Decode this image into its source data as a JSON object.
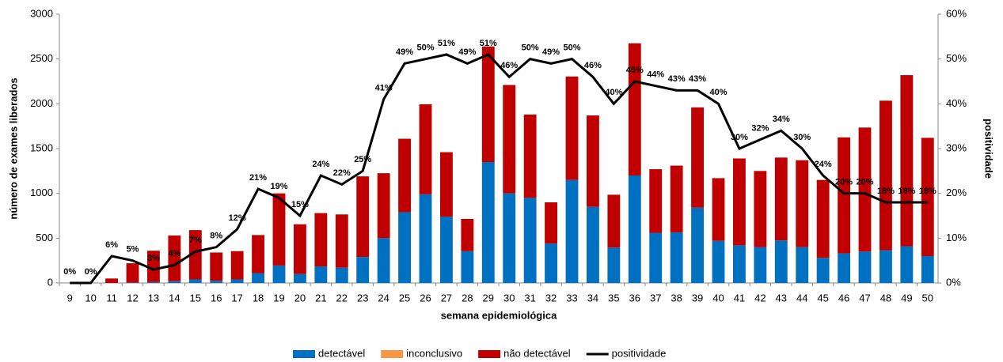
{
  "chart_data": {
    "type": "bar",
    "stacked": true,
    "x_label": "semana epidemiológica",
    "y_label": "número de exames liberados",
    "y2_label": "positividade",
    "categories": [
      "9",
      "10",
      "11",
      "12",
      "13",
      "14",
      "15",
      "16",
      "17",
      "18",
      "19",
      "20",
      "21",
      "22",
      "23",
      "24",
      "25",
      "26",
      "27",
      "28",
      "29",
      "30",
      "31",
      "32",
      "33",
      "34",
      "35",
      "36",
      "37",
      "38",
      "39",
      "40",
      "41",
      "42",
      "43",
      "44",
      "45",
      "46",
      "47",
      "48",
      "49",
      "50"
    ],
    "ylim": [
      0,
      3000
    ],
    "yticks": [
      0,
      500,
      1000,
      1500,
      2000,
      2500,
      3000
    ],
    "y2lim": [
      0,
      60
    ],
    "y2ticks": [
      {
        "value": 0,
        "label": "0%"
      },
      {
        "value": 10,
        "label": "10%"
      },
      {
        "value": 20,
        "label": "20%"
      },
      {
        "value": 30,
        "label": "30%"
      },
      {
        "value": 40,
        "label": "40%"
      },
      {
        "value": 50,
        "label": "50%"
      },
      {
        "value": 60,
        "label": "60%"
      }
    ],
    "series": [
      {
        "name": "detectável",
        "color": "#0070c0",
        "values": [
          0,
          0,
          0,
          5,
          10,
          20,
          40,
          25,
          40,
          110,
          195,
          100,
          185,
          170,
          290,
          500,
          790,
          990,
          740,
          355,
          1350,
          1000,
          950,
          440,
          1150,
          850,
          395,
          1200,
          560,
          565,
          840,
          470,
          420,
          400,
          475,
          400,
          280,
          330,
          350,
          365,
          410,
          300
        ]
      },
      {
        "name": "inconclusivo",
        "color": "#f79646",
        "values": [
          0,
          0,
          0,
          0,
          0,
          0,
          0,
          0,
          0,
          0,
          0,
          0,
          0,
          0,
          0,
          0,
          0,
          0,
          0,
          0,
          0,
          0,
          0,
          0,
          0,
          0,
          0,
          0,
          0,
          0,
          0,
          0,
          0,
          0,
          0,
          0,
          0,
          0,
          0,
          0,
          0,
          0
        ]
      },
      {
        "name": "não detectável",
        "color": "#c00000",
        "values": [
          0,
          0,
          50,
          215,
          350,
          510,
          550,
          315,
          315,
          425,
          805,
          555,
          595,
          595,
          900,
          725,
          820,
          1005,
          720,
          360,
          1290,
          1210,
          930,
          460,
          1155,
          1020,
          590,
          1475,
          710,
          745,
          1120,
          700,
          970,
          850,
          925,
          970,
          870,
          1295,
          1385,
          1670,
          1910,
          1320
        ]
      },
      {
        "name": "positividade",
        "color": "#000000",
        "type": "line",
        "axis": "y2",
        "values": [
          0,
          0,
          6,
          5,
          3,
          4,
          7,
          8,
          12,
          21,
          19,
          15,
          24,
          22,
          25,
          41,
          49,
          50,
          51,
          49,
          51,
          46,
          50,
          49,
          50,
          46,
          40,
          45,
          44,
          43,
          43,
          40,
          30,
          32,
          34,
          30,
          24,
          20,
          20,
          18,
          18,
          18
        ],
        "value_labels": [
          "0%",
          "0%",
          "6%",
          "5%",
          "3%",
          "4%",
          "7%",
          "8%",
          "12%",
          "21%",
          "19%",
          "15%",
          "24%",
          "22%",
          "25%",
          "41%",
          "49%",
          "50%",
          "51%",
          "49%",
          "51%",
          "46%",
          "50%",
          "49%",
          "50%",
          "46%",
          "40%",
          "45%",
          "44%",
          "43%",
          "43%",
          "40%",
          "30%",
          "32%",
          "34%",
          "30%",
          "24%",
          "20%",
          "20%",
          "18%",
          "18%",
          "18%"
        ]
      }
    ]
  }
}
